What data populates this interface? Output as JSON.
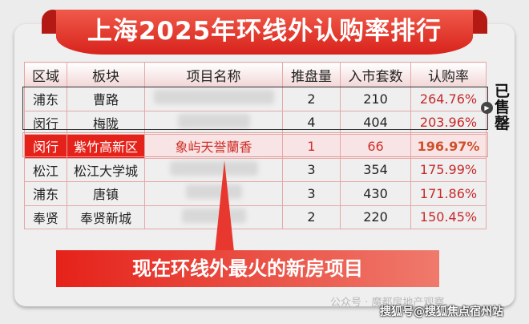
{
  "title": "上海2025年环线外认购率排行",
  "table": {
    "headers": [
      "区域",
      "板块",
      "项目名称",
      "推盘量",
      "入市套数",
      "认购率"
    ],
    "rows": [
      {
        "district": "浦东",
        "area": "曹路",
        "project": "",
        "batches": "2",
        "units": "210",
        "rate": "264.76%"
      },
      {
        "district": "闵行",
        "area": "梅陇",
        "project": "",
        "batches": "4",
        "units": "404",
        "rate": "203.96%"
      },
      {
        "district": "闵行",
        "area": "紫竹高新区",
        "project": "象屿天誉蘭香",
        "batches": "1",
        "units": "66",
        "rate": "196.97%"
      },
      {
        "district": "松江",
        "area": "松江大学城",
        "project": "",
        "batches": "3",
        "units": "354",
        "rate": "175.99%"
      },
      {
        "district": "浦东",
        "area": "唐镇",
        "project": "",
        "batches": "3",
        "units": "430",
        "rate": "171.86%"
      },
      {
        "district": "奉贤",
        "area": "奉贤新城",
        "project": "",
        "batches": "2",
        "units": "220",
        "rate": "150.45%"
      }
    ]
  },
  "sold_out": "已售罄",
  "callout": "现在环线外最火的新房项目",
  "watermark1": "公众号 · 魔都房地产观察",
  "watermark2": "搜狐号@搜狐焦点宿州站",
  "colors": {
    "accent": "#e5221a",
    "rate": "#c8282a"
  }
}
